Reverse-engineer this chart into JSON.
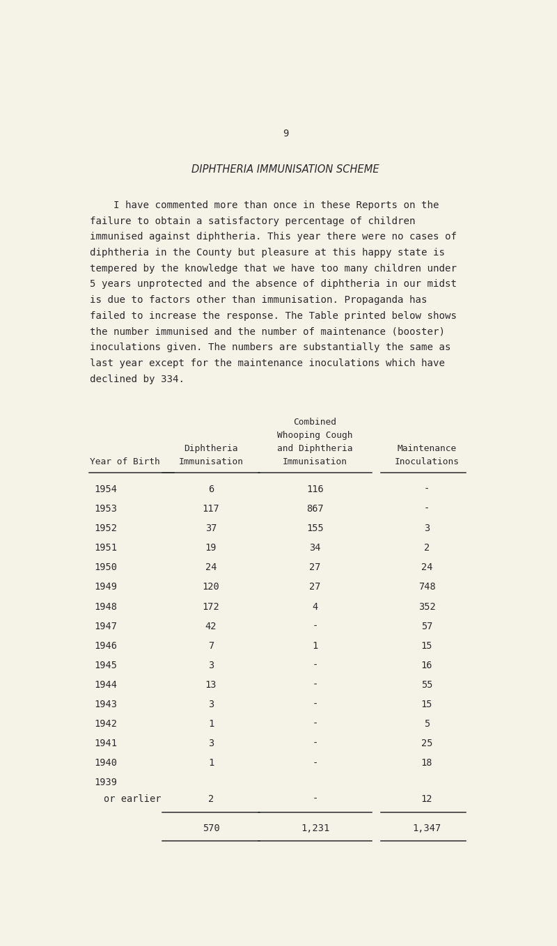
{
  "page_number": "9",
  "title": "DIPHTHERIA IMMUNISATION SCHEME",
  "body_text": [
    "    I have commented more than once in these Reports on the",
    "failure to obtain a satisfactory percentage of children",
    "immunised against diphtheria. This year there were no cases of",
    "diphtheria in the County but pleasure at this happy state is",
    "tempered by the knowledge that we have too many children under",
    "5 years unprotected and the absence of diphtheria in our midst",
    "is due to factors other than immunisation. Propaganda has",
    "failed to increase the response. The Table printed below shows",
    "the number immunised and the number of maintenance (booster)",
    "inoculations given. The numbers are substantially the same as",
    "last year except for the maintenance inoculations which have",
    "declined by 334."
  ],
  "table_rows": [
    [
      "1954",
      "6",
      "116",
      "-"
    ],
    [
      "1953",
      "117",
      "867",
      "-"
    ],
    [
      "1952",
      "37",
      "155",
      "3"
    ],
    [
      "1951",
      "19",
      "34",
      "2"
    ],
    [
      "1950",
      "24",
      "27",
      "24"
    ],
    [
      "1949",
      "120",
      "27",
      "748"
    ],
    [
      "1948",
      "172",
      "4",
      "352"
    ],
    [
      "1947",
      "42",
      "-",
      "57"
    ],
    [
      "1946",
      "7",
      "1",
      "15"
    ],
    [
      "1945",
      "3",
      "-",
      "16"
    ],
    [
      "1944",
      "13",
      "-",
      "55"
    ],
    [
      "1943",
      "3",
      "-",
      "15"
    ],
    [
      "1942",
      "1",
      "-",
      "5"
    ],
    [
      "1941",
      "3",
      "-",
      "25"
    ],
    [
      "1940",
      "1",
      "-",
      "18"
    ]
  ],
  "last_row": [
    "1939",
    "or earlier",
    "2",
    "-",
    "12"
  ],
  "totals": [
    "570",
    "1,231",
    "1,347"
  ],
  "bg_color": "#f5f2e8",
  "text_color": "#2a2a2a"
}
